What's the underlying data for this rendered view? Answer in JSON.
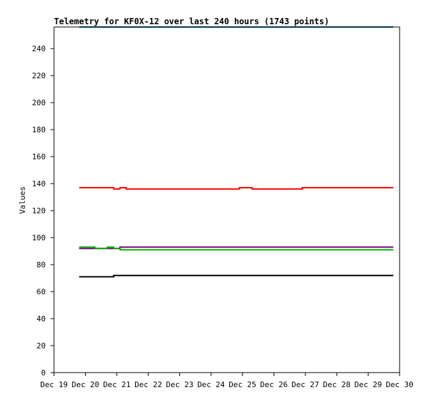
{
  "chart_data": {
    "type": "line",
    "title": "Telemetry for KF0X-12 over last 240 hours (1743 points)",
    "xlabel": "",
    "ylabel": "Values",
    "x_axis_kind": "date",
    "xlim": [
      "Dec 19",
      "Dec 30"
    ],
    "x_tick_labels": [
      "Dec 19",
      "Dec 20",
      "Dec 21",
      "Dec 22",
      "Dec 23",
      "Dec 24",
      "Dec 25",
      "Dec 26",
      "Dec 27",
      "Dec 28",
      "Dec 29",
      "Dec 30"
    ],
    "ylim": [
      0,
      256
    ],
    "y_ticks": [
      0,
      20,
      40,
      60,
      80,
      100,
      120,
      140,
      160,
      180,
      200,
      220,
      240
    ],
    "grid": false,
    "legend": "none",
    "colors": {
      "red": "#ff0000",
      "purple": "#800080",
      "green": "#00aa00",
      "black": "#000000",
      "teal": "#00688b"
    },
    "series": [
      {
        "color": "red",
        "x": [
          "Dec 19.8",
          "Dec 20.1",
          "Dec 20.3",
          "Dec 20.5",
          "Dec 20.7",
          "Dec 20.9",
          "Dec 21.1",
          "Dec 21.3",
          "Dec 21.5",
          "Dec 21.7",
          "Dec 21.9",
          "Dec 22.1",
          "Dec 22.3",
          "Dec 22.5",
          "Dec 22.7",
          "Dec 22.9",
          "Dec 23.1",
          "Dec 23.3",
          "Dec 23.5",
          "Dec 23.7",
          "Dec 23.9",
          "Dec 24.1",
          "Dec 24.3",
          "Dec 24.5",
          "Dec 24.7",
          "Dec 24.9",
          "Dec 25.1",
          "Dec 25.3",
          "Dec 25.5",
          "Dec 25.7",
          "Dec 25.9",
          "Dec 26.1",
          "Dec 26.3",
          "Dec 26.5",
          "Dec 26.7",
          "Dec 26.9",
          "Dec 27.1",
          "Dec 27.3",
          "Dec 27.5",
          "Dec 27.7",
          "Dec 27.9",
          "Dec 28.1",
          "Dec 28.3",
          "Dec 28.5",
          "Dec 28.7",
          "Dec 28.9",
          "Dec 29.1",
          "Dec 29.3",
          "Dec 29.5",
          "Dec 29.7",
          "Dec 29.8"
        ],
        "values": [
          137,
          137,
          137,
          137,
          137,
          136,
          137,
          136,
          136,
          136,
          136,
          136,
          136,
          136,
          136,
          136,
          136,
          136,
          136,
          136,
          136,
          136,
          136,
          136,
          136,
          137,
          137,
          136,
          136,
          136,
          136,
          136,
          136,
          136,
          136,
          137,
          137,
          137,
          137,
          137,
          137,
          137,
          137,
          137,
          137,
          137,
          137,
          137,
          137,
          137,
          137
        ]
      },
      {
        "color": "purple",
        "x": [
          "Dec 19.8",
          "Dec 20.1",
          "Dec 20.3",
          "Dec 20.5",
          "Dec 20.7",
          "Dec 20.9",
          "Dec 21.1",
          "Dec 21.3",
          "Dec 21.5",
          "Dec 21.7",
          "Dec 21.9",
          "Dec 22.1",
          "Dec 22.3",
          "Dec 22.5",
          "Dec 22.7",
          "Dec 22.9",
          "Dec 23.1",
          "Dec 23.3",
          "Dec 23.5",
          "Dec 23.7",
          "Dec 23.9",
          "Dec 24.1",
          "Dec 24.3",
          "Dec 24.5",
          "Dec 24.7",
          "Dec 24.9",
          "Dec 25.1",
          "Dec 25.3",
          "Dec 25.5",
          "Dec 25.7",
          "Dec 25.9",
          "Dec 26.1",
          "Dec 26.3",
          "Dec 26.5",
          "Dec 26.7",
          "Dec 26.9",
          "Dec 27.1",
          "Dec 27.3",
          "Dec 27.5",
          "Dec 27.7",
          "Dec 27.9",
          "Dec 28.1",
          "Dec 28.3",
          "Dec 28.5",
          "Dec 28.7",
          "Dec 28.9",
          "Dec 29.1",
          "Dec 29.3",
          "Dec 29.5",
          "Dec 29.7",
          "Dec 29.8"
        ],
        "values": [
          92,
          92,
          92,
          92,
          92,
          92,
          93,
          93,
          93,
          93,
          93,
          93,
          93,
          93,
          93,
          93,
          93,
          93,
          93,
          93,
          93,
          93,
          93,
          93,
          93,
          93,
          93,
          93,
          93,
          93,
          93,
          93,
          93,
          93,
          93,
          93,
          93,
          93,
          93,
          93,
          93,
          93,
          93,
          93,
          93,
          93,
          93,
          93,
          93,
          93,
          93
        ]
      },
      {
        "color": "green",
        "x": [
          "Dec 19.8",
          "Dec 20.1",
          "Dec 20.3",
          "Dec 20.5",
          "Dec 20.7",
          "Dec 20.9",
          "Dec 21.1",
          "Dec 21.3",
          "Dec 21.5",
          "Dec 21.7",
          "Dec 21.9",
          "Dec 22.1",
          "Dec 22.3",
          "Dec 22.5",
          "Dec 22.7",
          "Dec 22.9",
          "Dec 23.1",
          "Dec 23.3",
          "Dec 23.5",
          "Dec 23.7",
          "Dec 23.9",
          "Dec 24.1",
          "Dec 24.3",
          "Dec 24.5",
          "Dec 24.7",
          "Dec 24.9",
          "Dec 25.1",
          "Dec 25.3",
          "Dec 25.5",
          "Dec 25.7",
          "Dec 25.9",
          "Dec 26.1",
          "Dec 26.3",
          "Dec 26.5",
          "Dec 26.7",
          "Dec 26.9",
          "Dec 27.1",
          "Dec 27.3",
          "Dec 27.5",
          "Dec 27.7",
          "Dec 27.9",
          "Dec 28.1",
          "Dec 28.3",
          "Dec 28.5",
          "Dec 28.7",
          "Dec 28.9",
          "Dec 29.1",
          "Dec 29.3",
          "Dec 29.5",
          "Dec 29.7",
          "Dec 29.8"
        ],
        "values": [
          93,
          93,
          92,
          92,
          93,
          92,
          91,
          91,
          91,
          91,
          91,
          91,
          91,
          91,
          91,
          91,
          91,
          91,
          91,
          91,
          91,
          91,
          91,
          91,
          91,
          91,
          91,
          91,
          91,
          91,
          91,
          91,
          91,
          91,
          91,
          91,
          91,
          91,
          91,
          91,
          91,
          91,
          91,
          91,
          91,
          91,
          91,
          91,
          91,
          91,
          91
        ]
      },
      {
        "color": "black",
        "x": [
          "Dec 19.8",
          "Dec 20.1",
          "Dec 20.3",
          "Dec 20.5",
          "Dec 20.7",
          "Dec 20.9",
          "Dec 21.1",
          "Dec 21.3",
          "Dec 21.5",
          "Dec 21.7",
          "Dec 21.9",
          "Dec 22.1",
          "Dec 22.3",
          "Dec 22.5",
          "Dec 22.7",
          "Dec 22.9",
          "Dec 23.1",
          "Dec 23.3",
          "Dec 23.5",
          "Dec 23.7",
          "Dec 23.9",
          "Dec 24.1",
          "Dec 24.3",
          "Dec 24.5",
          "Dec 24.7",
          "Dec 24.9",
          "Dec 25.1",
          "Dec 25.3",
          "Dec 25.5",
          "Dec 25.7",
          "Dec 25.9",
          "Dec 26.1",
          "Dec 26.3",
          "Dec 26.5",
          "Dec 26.7",
          "Dec 26.9",
          "Dec 27.1",
          "Dec 27.3",
          "Dec 27.5",
          "Dec 27.7",
          "Dec 27.9",
          "Dec 28.1",
          "Dec 28.3",
          "Dec 28.5",
          "Dec 28.7",
          "Dec 28.9",
          "Dec 29.1",
          "Dec 29.3",
          "Dec 29.5",
          "Dec 29.7",
          "Dec 29.8"
        ],
        "values": [
          71,
          71,
          71,
          71,
          71,
          72,
          72,
          72,
          72,
          72,
          72,
          72,
          72,
          72,
          72,
          72,
          72,
          72,
          72,
          72,
          72,
          72,
          72,
          72,
          72,
          72,
          72,
          72,
          72,
          72,
          72,
          72,
          72,
          72,
          72,
          72,
          72,
          72,
          72,
          72,
          72,
          72,
          72,
          72,
          72,
          72,
          72,
          72,
          72,
          72,
          72
        ]
      },
      {
        "color": "teal",
        "x": [
          "Dec 19.8",
          "Dec 29.8"
        ],
        "values": [
          256,
          256
        ]
      }
    ]
  }
}
